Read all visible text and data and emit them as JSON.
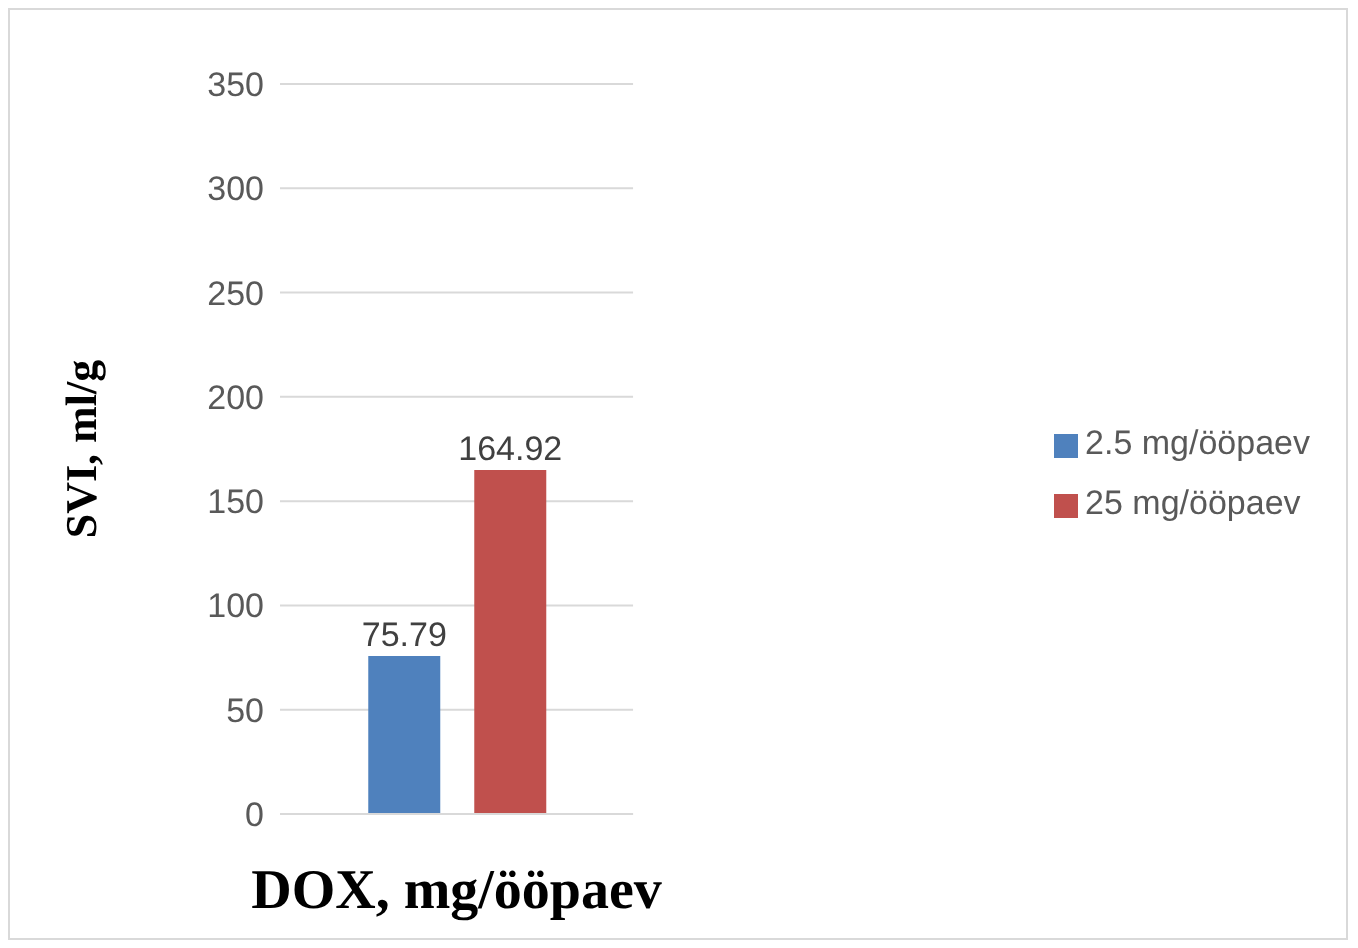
{
  "chart_data": {
    "type": "bar",
    "xlabel": "DOX, mg/ööpaev",
    "ylabel": "SVI, ml/g",
    "categories": [
      null
    ],
    "series": [
      {
        "name": "2.5 mg/ööpaev",
        "color": "#4f81bd",
        "values": [
          75.79
        ]
      },
      {
        "name": "25 mg/ööpaev",
        "color": "#c0504d",
        "values": [
          164.92
        ]
      }
    ],
    "ylim": [
      0,
      350
    ],
    "yticks": [
      0,
      50,
      100,
      150,
      200,
      250,
      300,
      350
    ],
    "grid": "y",
    "legend": "right",
    "data_labels": true
  }
}
